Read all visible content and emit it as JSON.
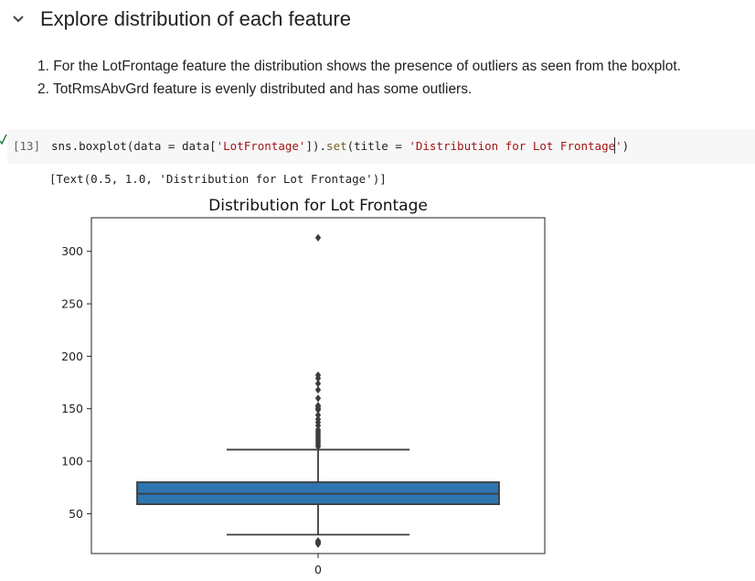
{
  "section": {
    "title": "Explore distribution of each feature",
    "chevron_icon": "chevron-down-icon"
  },
  "notes": {
    "item1": "1. For the LotFrontage feature the distribution shows the presence of outliers as seen from the boxplot.",
    "item2": "2. TotRmsAbvGrd feature is evenly distributed and has some outliers."
  },
  "cell": {
    "exec_count": "[13]",
    "status_icon": "check-icon",
    "code_tokens": [
      {
        "t": "sns.boxplot(data = data[",
        "c": "tk-plain"
      },
      {
        "t": "'LotFrontage'",
        "c": "tk-str"
      },
      {
        "t": "]).",
        "c": "tk-plain"
      },
      {
        "t": "set",
        "c": "tk-fn"
      },
      {
        "t": "(title = ",
        "c": "tk-plain"
      },
      {
        "t": "'Distribution for Lot Frontage'",
        "c": "tk-str"
      },
      {
        "t": ")",
        "c": "tk-plain"
      }
    ],
    "output_text": "[Text(0.5, 1.0, 'Distribution for Lot Frontage')]"
  },
  "chart_data": {
    "type": "box",
    "title": "Distribution for Lot Frontage",
    "xlabel": "",
    "ylabel": "",
    "categories": [
      "0"
    ],
    "ylim": [
      12,
      332
    ],
    "yticks": [
      50,
      100,
      150,
      200,
      250,
      300
    ],
    "box": {
      "q1": 59,
      "median": 69,
      "q3": 80,
      "whisker_low": 30,
      "whisker_high": 111,
      "color": "#2e75b0",
      "edge_color": "#3d3d3d"
    },
    "outliers": [
      21,
      22,
      23,
      24,
      114,
      116,
      118,
      120,
      122,
      124,
      126,
      128,
      130,
      134,
      137,
      140,
      144,
      149,
      150,
      152,
      153,
      160,
      168,
      174,
      179,
      182,
      313
    ]
  }
}
